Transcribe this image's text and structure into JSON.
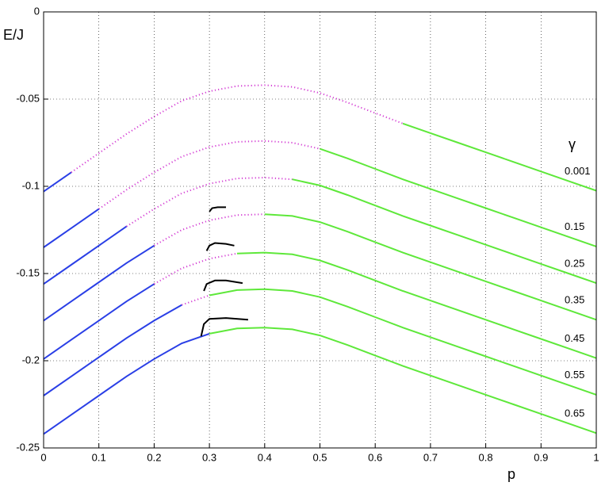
{
  "chart_data": {
    "type": "line",
    "xlabel": "p",
    "ylabel": "E/J",
    "legend_title": "γ",
    "xlim": [
      0,
      1
    ],
    "ylim": [
      -0.25,
      0
    ],
    "xticks": [
      0,
      0.1,
      0.2,
      0.3,
      0.4,
      0.5,
      0.6,
      0.7,
      0.8,
      0.9,
      1
    ],
    "yticks": [
      -0.25,
      -0.2,
      -0.15,
      -0.1,
      -0.05,
      0
    ],
    "grid": true,
    "curves": [
      {
        "label": "0.001",
        "segments": [
          {
            "color": "#2a3fe6",
            "style": "solid",
            "x": [
              0,
              0.05
            ],
            "values": [
              -0.103,
              -0.092
            ]
          },
          {
            "color": "#d43fd4",
            "style": "dotted",
            "x": [
              0.05,
              0.1,
              0.15,
              0.2,
              0.25,
              0.3,
              0.35,
              0.4,
              0.45,
              0.5,
              0.55,
              0.6,
              0.65
            ],
            "values": [
              -0.092,
              -0.081,
              -0.07,
              -0.06,
              -0.051,
              -0.0455,
              -0.0425,
              -0.042,
              -0.043,
              -0.0465,
              -0.052,
              -0.058,
              -0.064
            ]
          },
          {
            "color": "#5ee83a",
            "style": "solid",
            "x": [
              0.65,
              0.7,
              0.75,
              0.8,
              0.85,
              0.9,
              0.95,
              1
            ],
            "values": [
              -0.064,
              -0.0695,
              -0.075,
              -0.0805,
              -0.086,
              -0.0915,
              -0.097,
              -0.1025
            ]
          }
        ]
      },
      {
        "label": "0.15",
        "segments": [
          {
            "color": "#2a3fe6",
            "style": "solid",
            "x": [
              0,
              0.05,
              0.1
            ],
            "values": [
              -0.135,
              -0.124,
              -0.113
            ]
          },
          {
            "color": "#d43fd4",
            "style": "dotted",
            "x": [
              0.1,
              0.15,
              0.2,
              0.25,
              0.3,
              0.35,
              0.4,
              0.45,
              0.5
            ],
            "values": [
              -0.113,
              -0.102,
              -0.092,
              -0.083,
              -0.0775,
              -0.0745,
              -0.074,
              -0.075,
              -0.0785
            ]
          },
          {
            "color": "#5ee83a",
            "style": "solid",
            "x": [
              0.5,
              0.55,
              0.6,
              0.65,
              0.7,
              0.75,
              0.8,
              0.85,
              0.9,
              0.95,
              1
            ],
            "values": [
              -0.0785,
              -0.084,
              -0.09,
              -0.096,
              -0.1015,
              -0.107,
              -0.1125,
              -0.118,
              -0.1235,
              -0.129,
              -0.1345
            ]
          }
        ]
      },
      {
        "label": "0.25",
        "segments": [
          {
            "color": "#2a3fe6",
            "style": "solid",
            "x": [
              0,
              0.05,
              0.1,
              0.15
            ],
            "values": [
              -0.156,
              -0.145,
              -0.134,
              -0.123
            ]
          },
          {
            "color": "#d43fd4",
            "style": "dotted",
            "x": [
              0.15,
              0.2,
              0.25,
              0.3,
              0.35,
              0.4,
              0.45
            ],
            "values": [
              -0.123,
              -0.113,
              -0.104,
              -0.0985,
              -0.0955,
              -0.095,
              -0.096
            ]
          },
          {
            "color": "#5ee83a",
            "style": "solid",
            "x": [
              0.45,
              0.5,
              0.55,
              0.6,
              0.65,
              0.7,
              0.75,
              0.8,
              0.85,
              0.9,
              0.95,
              1
            ],
            "values": [
              -0.096,
              -0.0995,
              -0.105,
              -0.111,
              -0.117,
              -0.1225,
              -0.128,
              -0.1335,
              -0.139,
              -0.1445,
              -0.15,
              -0.1555
            ]
          }
        ]
      },
      {
        "label": "0.35",
        "segments": [
          {
            "color": "#2a3fe6",
            "style": "solid",
            "x": [
              0,
              0.05,
              0.1,
              0.15,
              0.2
            ],
            "values": [
              -0.177,
              -0.166,
              -0.155,
              -0.144,
              -0.134
            ]
          },
          {
            "color": "#d43fd4",
            "style": "dotted",
            "x": [
              0.2,
              0.25,
              0.3,
              0.35,
              0.4
            ],
            "values": [
              -0.134,
              -0.125,
              -0.1195,
              -0.1165,
              -0.116
            ]
          },
          {
            "color": "#5ee83a",
            "style": "solid",
            "x": [
              0.4,
              0.45,
              0.5,
              0.55,
              0.6,
              0.65,
              0.7,
              0.75,
              0.8,
              0.85,
              0.9,
              0.95,
              1
            ],
            "values": [
              -0.116,
              -0.117,
              -0.1205,
              -0.126,
              -0.132,
              -0.138,
              -0.1435,
              -0.149,
              -0.1545,
              -0.16,
              -0.1655,
              -0.171,
              -0.1765
            ]
          },
          {
            "color": "#000000",
            "style": "solid",
            "x": [
              0.3,
              0.305,
              0.315,
              0.33
            ],
            "values": [
              -0.1145,
              -0.1125,
              -0.112,
              -0.112
            ]
          }
        ]
      },
      {
        "label": "0.45",
        "segments": [
          {
            "color": "#2a3fe6",
            "style": "solid",
            "x": [
              0,
              0.05,
              0.1,
              0.15,
              0.2
            ],
            "values": [
              -0.199,
              -0.188,
              -0.177,
              -0.166,
              -0.156
            ]
          },
          {
            "color": "#d43fd4",
            "style": "dotted",
            "x": [
              0.2,
              0.25,
              0.3,
              0.35
            ],
            "values": [
              -0.156,
              -0.147,
              -0.1415,
              -0.1385
            ]
          },
          {
            "color": "#5ee83a",
            "style": "solid",
            "x": [
              0.35,
              0.4,
              0.45,
              0.5,
              0.55,
              0.6,
              0.65,
              0.7,
              0.75,
              0.8,
              0.85,
              0.9,
              0.95,
              1
            ],
            "values": [
              -0.1385,
              -0.138,
              -0.139,
              -0.1425,
              -0.148,
              -0.154,
              -0.16,
              -0.1655,
              -0.171,
              -0.1765,
              -0.182,
              -0.1875,
              -0.193,
              -0.1985
            ]
          },
          {
            "color": "#000000",
            "style": "solid",
            "x": [
              0.295,
              0.3,
              0.31,
              0.33,
              0.345
            ],
            "values": [
              -0.137,
              -0.134,
              -0.1325,
              -0.133,
              -0.134
            ]
          }
        ]
      },
      {
        "label": "0.55",
        "segments": [
          {
            "color": "#2a3fe6",
            "style": "solid",
            "x": [
              0,
              0.05,
              0.1,
              0.15,
              0.2,
              0.25
            ],
            "values": [
              -0.22,
              -0.209,
              -0.198,
              -0.187,
              -0.177,
              -0.168
            ]
          },
          {
            "color": "#d43fd4",
            "style": "dotted",
            "x": [
              0.25,
              0.3
            ],
            "values": [
              -0.168,
              -0.1625
            ]
          },
          {
            "color": "#5ee83a",
            "style": "solid",
            "x": [
              0.3,
              0.35,
              0.4,
              0.45,
              0.5,
              0.55,
              0.6,
              0.65,
              0.7,
              0.75,
              0.8,
              0.85,
              0.9,
              0.95,
              1
            ],
            "values": [
              -0.1625,
              -0.1595,
              -0.159,
              -0.16,
              -0.1635,
              -0.169,
              -0.175,
              -0.181,
              -0.1865,
              -0.192,
              -0.1975,
              -0.203,
              -0.2085,
              -0.214,
              -0.2195
            ]
          },
          {
            "color": "#000000",
            "style": "solid",
            "x": [
              0.29,
              0.295,
              0.31,
              0.33,
              0.36
            ],
            "values": [
              -0.16,
              -0.156,
              -0.154,
              -0.154,
              -0.1555
            ]
          }
        ]
      },
      {
        "label": "0.65",
        "segments": [
          {
            "color": "#2a3fe6",
            "style": "solid",
            "x": [
              0,
              0.05,
              0.1,
              0.15,
              0.2,
              0.25,
              0.3
            ],
            "values": [
              -0.242,
              -0.231,
              -0.22,
              -0.209,
              -0.199,
              -0.19,
              -0.1845
            ]
          },
          {
            "color": "#5ee83a",
            "style": "solid",
            "x": [
              0.3,
              0.35,
              0.4,
              0.45,
              0.5,
              0.55,
              0.6,
              0.65,
              0.7,
              0.75,
              0.8,
              0.85,
              0.9,
              0.95,
              1
            ],
            "values": [
              -0.1845,
              -0.1815,
              -0.181,
              -0.182,
              -0.1855,
              -0.191,
              -0.197,
              -0.203,
              -0.2085,
              -0.214,
              -0.2195,
              -0.225,
              -0.2305,
              -0.236,
              -0.2415
            ]
          },
          {
            "color": "#000000",
            "style": "solid",
            "x": [
              0.285,
              0.29,
              0.3,
              0.33,
              0.37
            ],
            "values": [
              -0.186,
              -0.179,
              -0.176,
              -0.1755,
              -0.1765
            ]
          }
        ]
      }
    ]
  }
}
